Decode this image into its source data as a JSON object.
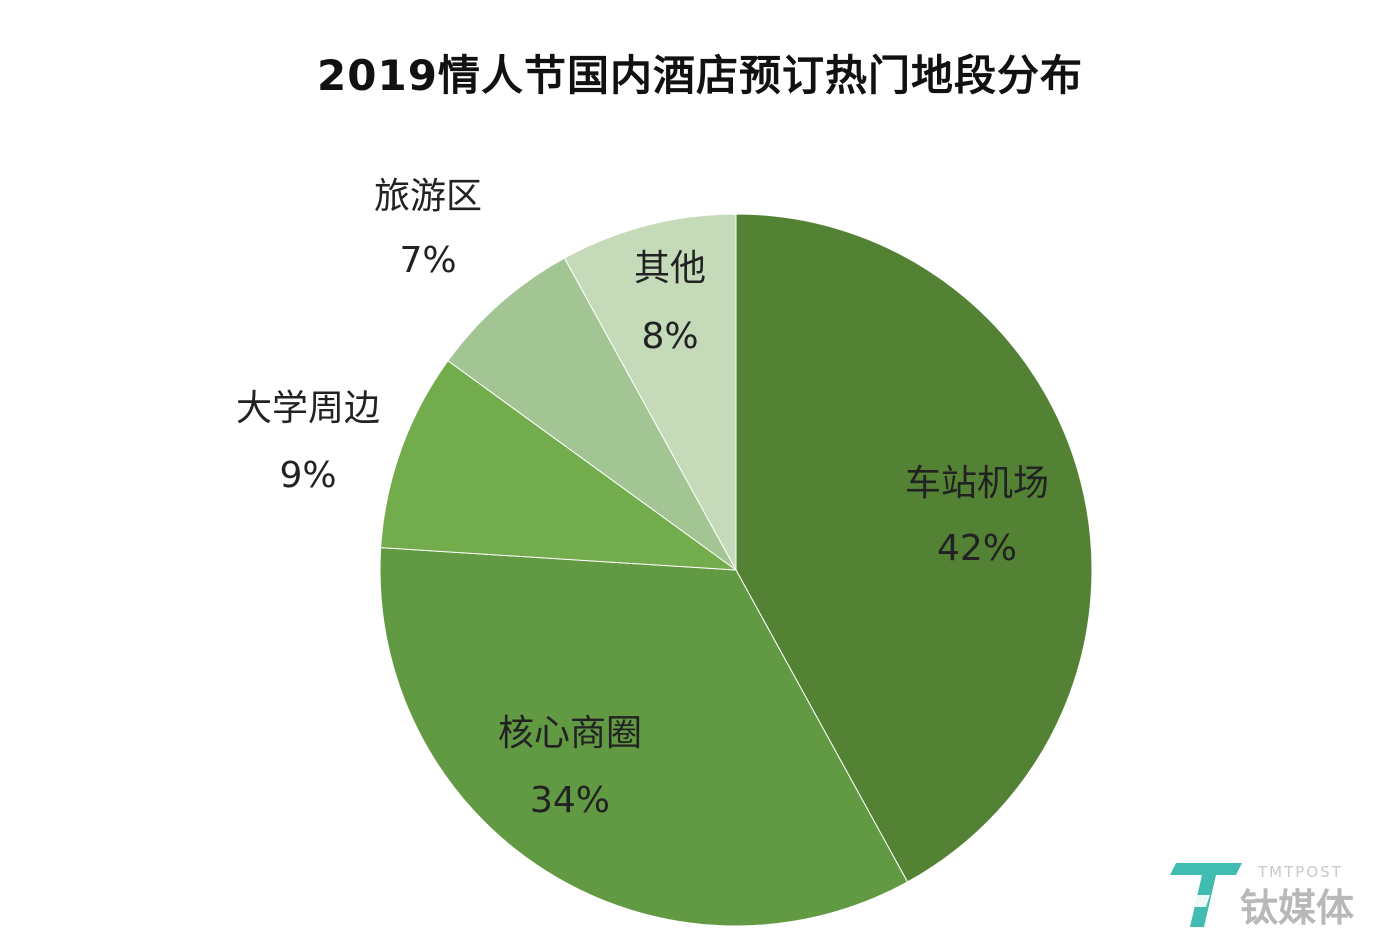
{
  "chart_data": {
    "type": "pie",
    "title": "2019情人节国内酒店预订热门地段分布",
    "slices": [
      {
        "label": "车站机场",
        "value": 42,
        "value_text": "42%",
        "color": "#548235"
      },
      {
        "label": "核心商圈",
        "value": 34,
        "value_text": "34%",
        "color": "#629A44"
      },
      {
        "label": "大学周边",
        "value": 9,
        "value_text": "9%",
        "color": "#72AC4D"
      },
      {
        "label": "旅游区",
        "value": 7,
        "value_text": "7%",
        "color": "#A3C593"
      },
      {
        "label": "其他",
        "value": 8,
        "value_text": "8%",
        "color": "#C5DAB9"
      }
    ],
    "start_angle": "12 o'clock, clockwise",
    "legend": "none"
  },
  "watermark": {
    "logo_text": "TMTPOST 钛媒体",
    "colors": {
      "teal": "#2bb5a8",
      "gray": "#b8b8b8"
    }
  }
}
